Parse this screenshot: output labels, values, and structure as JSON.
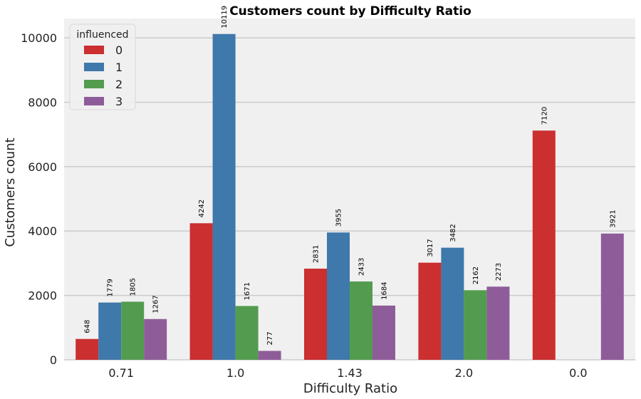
{
  "chart_data": {
    "type": "bar",
    "title": "Customers count by Difficulty Ratio",
    "xlabel": "Difficulty Ratio",
    "ylabel": "Customers count",
    "categories": [
      "0.71",
      "1.0",
      "1.43",
      "2.0",
      "0.0"
    ],
    "ylim": [
      0,
      10600
    ],
    "yticks": [
      0,
      2000,
      4000,
      6000,
      8000,
      10000
    ],
    "grid": true,
    "legend": {
      "title": "influenced",
      "placement": "top-left"
    },
    "series": [
      {
        "name": "0",
        "color": "#cb2f30",
        "values": [
          648,
          4242,
          2831,
          3017,
          7120
        ]
      },
      {
        "name": "1",
        "color": "#3f78aa",
        "values": [
          1779,
          10119,
          3955,
          3482,
          null
        ]
      },
      {
        "name": "2",
        "color": "#539c4f",
        "values": [
          1805,
          1671,
          2433,
          2162,
          null
        ]
      },
      {
        "name": "3",
        "color": "#8f5c9a",
        "values": [
          1267,
          277,
          1684,
          2273,
          3921
        ]
      }
    ],
    "background": "#f0f0f0",
    "grid_color": "#cbcbcb"
  }
}
